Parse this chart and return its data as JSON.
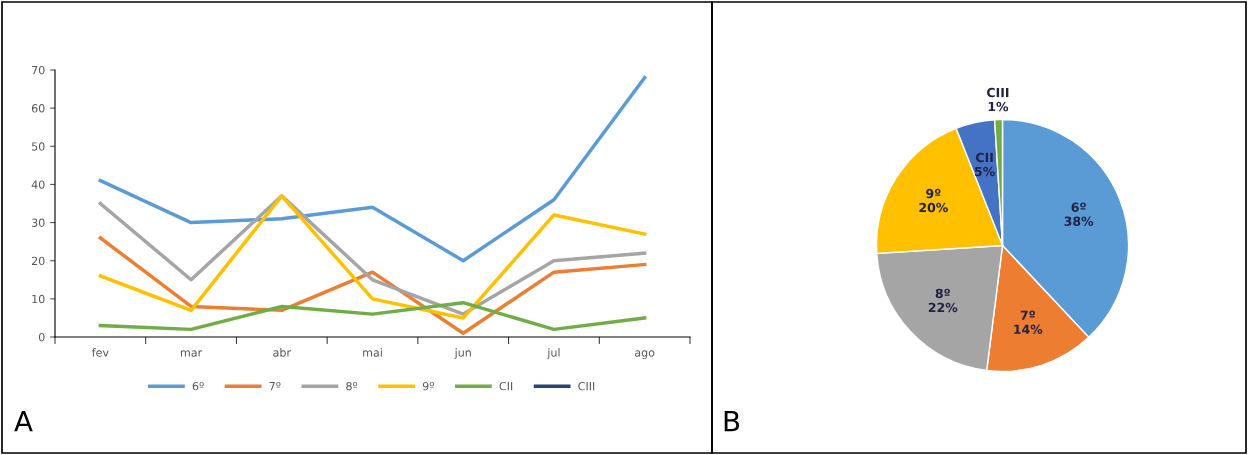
{
  "chart_data": [
    {
      "type": "line",
      "categories": [
        "fev",
        "mar",
        "abr",
        "mai",
        "jun",
        "jul",
        "ago"
      ],
      "series": [
        {
          "name": "6º",
          "color": "#5b9bd5",
          "values": [
            41,
            30,
            31,
            34,
            20,
            36,
            68
          ]
        },
        {
          "name": "7º",
          "color": "#ed7d31",
          "values": [
            26,
            8,
            7,
            17,
            1,
            17,
            19
          ]
        },
        {
          "name": "8º",
          "color": "#a5a5a5",
          "values": [
            35,
            15,
            37,
            15,
            6,
            20,
            22
          ]
        },
        {
          "name": "9º",
          "color": "#ffc000",
          "values": [
            16,
            7,
            37,
            10,
            5,
            32,
            27
          ]
        },
        {
          "name": "CII",
          "color": "#70ad47",
          "values": [
            3,
            2,
            8,
            6,
            9,
            2,
            5
          ]
        },
        {
          "name": "CIII",
          "color": "#264478",
          "values": [
            null,
            null,
            null,
            null,
            null,
            null,
            null
          ]
        }
      ],
      "ylim": [
        0,
        70
      ],
      "yticks": [
        0,
        10,
        20,
        30,
        40,
        50,
        60,
        70
      ],
      "grid": false,
      "legend": "bottom",
      "marker": "none",
      "line_style": "solid",
      "annotations": [
        "A"
      ]
    },
    {
      "type": "pie",
      "categories": [
        "6º",
        "7º",
        "8º",
        "9º",
        "CII",
        "CIII"
      ],
      "values": [
        38,
        14,
        22,
        20,
        5,
        1
      ],
      "value_labels": [
        "38%",
        "14%",
        "22%",
        "20%",
        "5%",
        "1%"
      ],
      "colors": [
        "#5b9bd5",
        "#ed7d31",
        "#a5a5a5",
        "#ffc000",
        "#4472c4",
        "#70ad47"
      ],
      "legend": false,
      "annotations": [
        "B"
      ]
    }
  ]
}
